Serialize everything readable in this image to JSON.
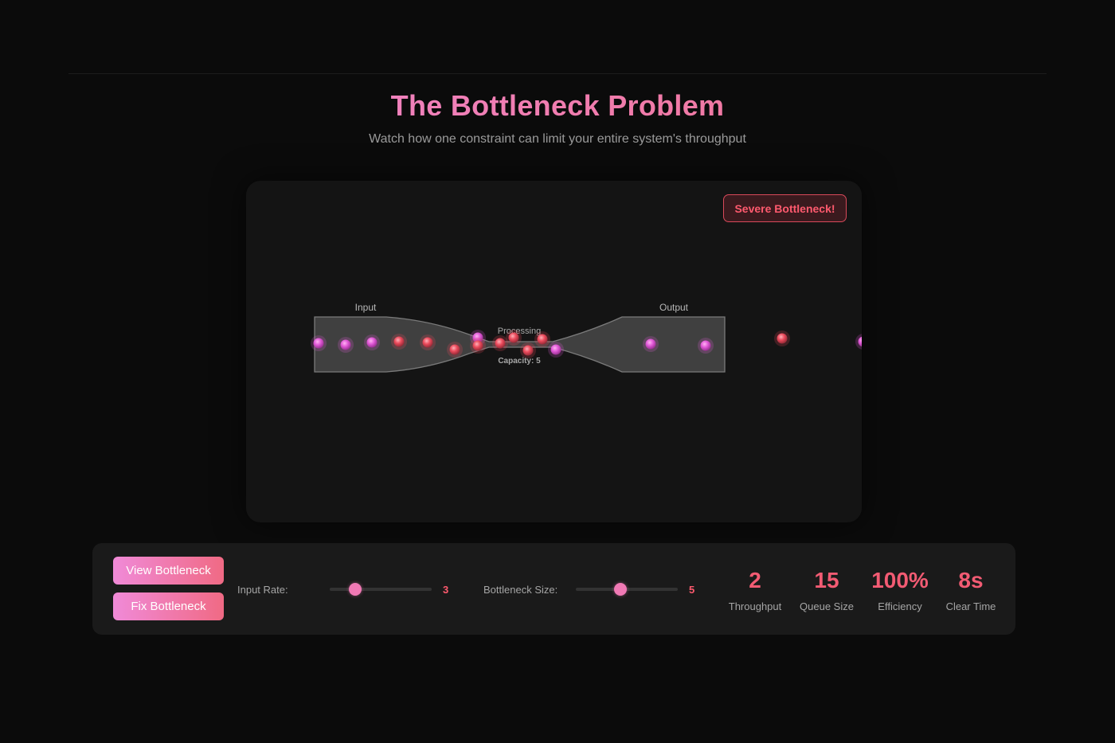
{
  "header": {
    "title": "The Bottleneck Problem",
    "subtitle": "Watch how one constraint can limit your entire system's throughput"
  },
  "simulation": {
    "status_badge": "Severe Bottleneck!",
    "labels": {
      "input": "Input",
      "processing": "Processing",
      "capacity": "Capacity: 5",
      "output": "Output"
    }
  },
  "controls": {
    "view_button": "View Bottleneck",
    "fix_button": "Fix Bottleneck",
    "input_rate": {
      "label": "Input Rate:",
      "value": "3",
      "level": 0.25
    },
    "bottleneck_size": {
      "label": "Bottleneck Size:",
      "value": "5",
      "level": 0.44
    }
  },
  "stats": [
    {
      "value": "2",
      "label": "Throughput"
    },
    {
      "value": "15",
      "label": "Queue Size"
    },
    {
      "value": "100%",
      "label": "Efficiency"
    },
    {
      "value": "8s",
      "label": "Clear Time"
    }
  ],
  "colors": {
    "accent_pink": "#f08ad8",
    "accent_red": "#f25b73",
    "particle_magenta": "#e05ad6",
    "particle_red": "#ec4b5c"
  }
}
